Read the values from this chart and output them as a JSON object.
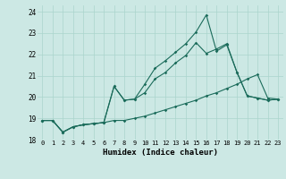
{
  "xlabel": "Humidex (Indice chaleur)",
  "bg_color": "#cce8e4",
  "grid_color": "#aad4cc",
  "line_color": "#1a6b5a",
  "xlim": [
    -0.5,
    23.5
  ],
  "ylim": [
    18.0,
    24.3
  ],
  "yticks": [
    18,
    19,
    20,
    21,
    22,
    23,
    24
  ],
  "xticks": [
    0,
    1,
    2,
    3,
    4,
    5,
    6,
    7,
    8,
    9,
    10,
    11,
    12,
    13,
    14,
    15,
    16,
    17,
    18,
    19,
    20,
    21,
    22,
    23
  ],
  "line1_x": [
    0,
    1,
    2,
    3,
    4,
    5,
    6,
    7,
    8,
    9,
    10,
    11,
    12,
    13,
    14,
    15,
    16,
    17,
    18,
    19,
    20,
    21,
    22,
    23
  ],
  "line1_y": [
    18.9,
    18.9,
    18.35,
    18.6,
    18.7,
    18.75,
    18.8,
    18.9,
    18.9,
    19.0,
    19.1,
    19.25,
    19.4,
    19.55,
    19.7,
    19.85,
    20.05,
    20.2,
    20.4,
    20.6,
    20.85,
    21.05,
    19.95,
    19.9
  ],
  "line2_x": [
    0,
    1,
    2,
    3,
    4,
    5,
    6,
    7,
    8,
    9,
    10,
    11,
    12,
    13,
    14,
    15,
    16,
    17,
    18,
    19,
    20,
    21,
    22,
    23
  ],
  "line2_y": [
    18.9,
    18.9,
    18.35,
    18.6,
    18.7,
    18.75,
    18.8,
    20.5,
    19.85,
    19.9,
    20.6,
    21.35,
    21.7,
    22.1,
    22.5,
    23.05,
    23.85,
    22.15,
    22.45,
    21.15,
    20.05,
    19.95,
    19.85,
    19.9
  ],
  "line3_x": [
    0,
    1,
    2,
    3,
    4,
    5,
    6,
    7,
    8,
    9,
    10,
    11,
    12,
    13,
    14,
    15,
    16,
    17,
    18,
    19,
    20,
    21,
    22,
    23
  ],
  "line3_y": [
    18.9,
    18.9,
    18.35,
    18.6,
    18.7,
    18.75,
    18.8,
    20.5,
    19.85,
    19.9,
    20.2,
    20.85,
    21.15,
    21.6,
    21.95,
    22.55,
    22.05,
    22.25,
    22.5,
    21.15,
    20.05,
    19.95,
    19.85,
    19.9
  ]
}
